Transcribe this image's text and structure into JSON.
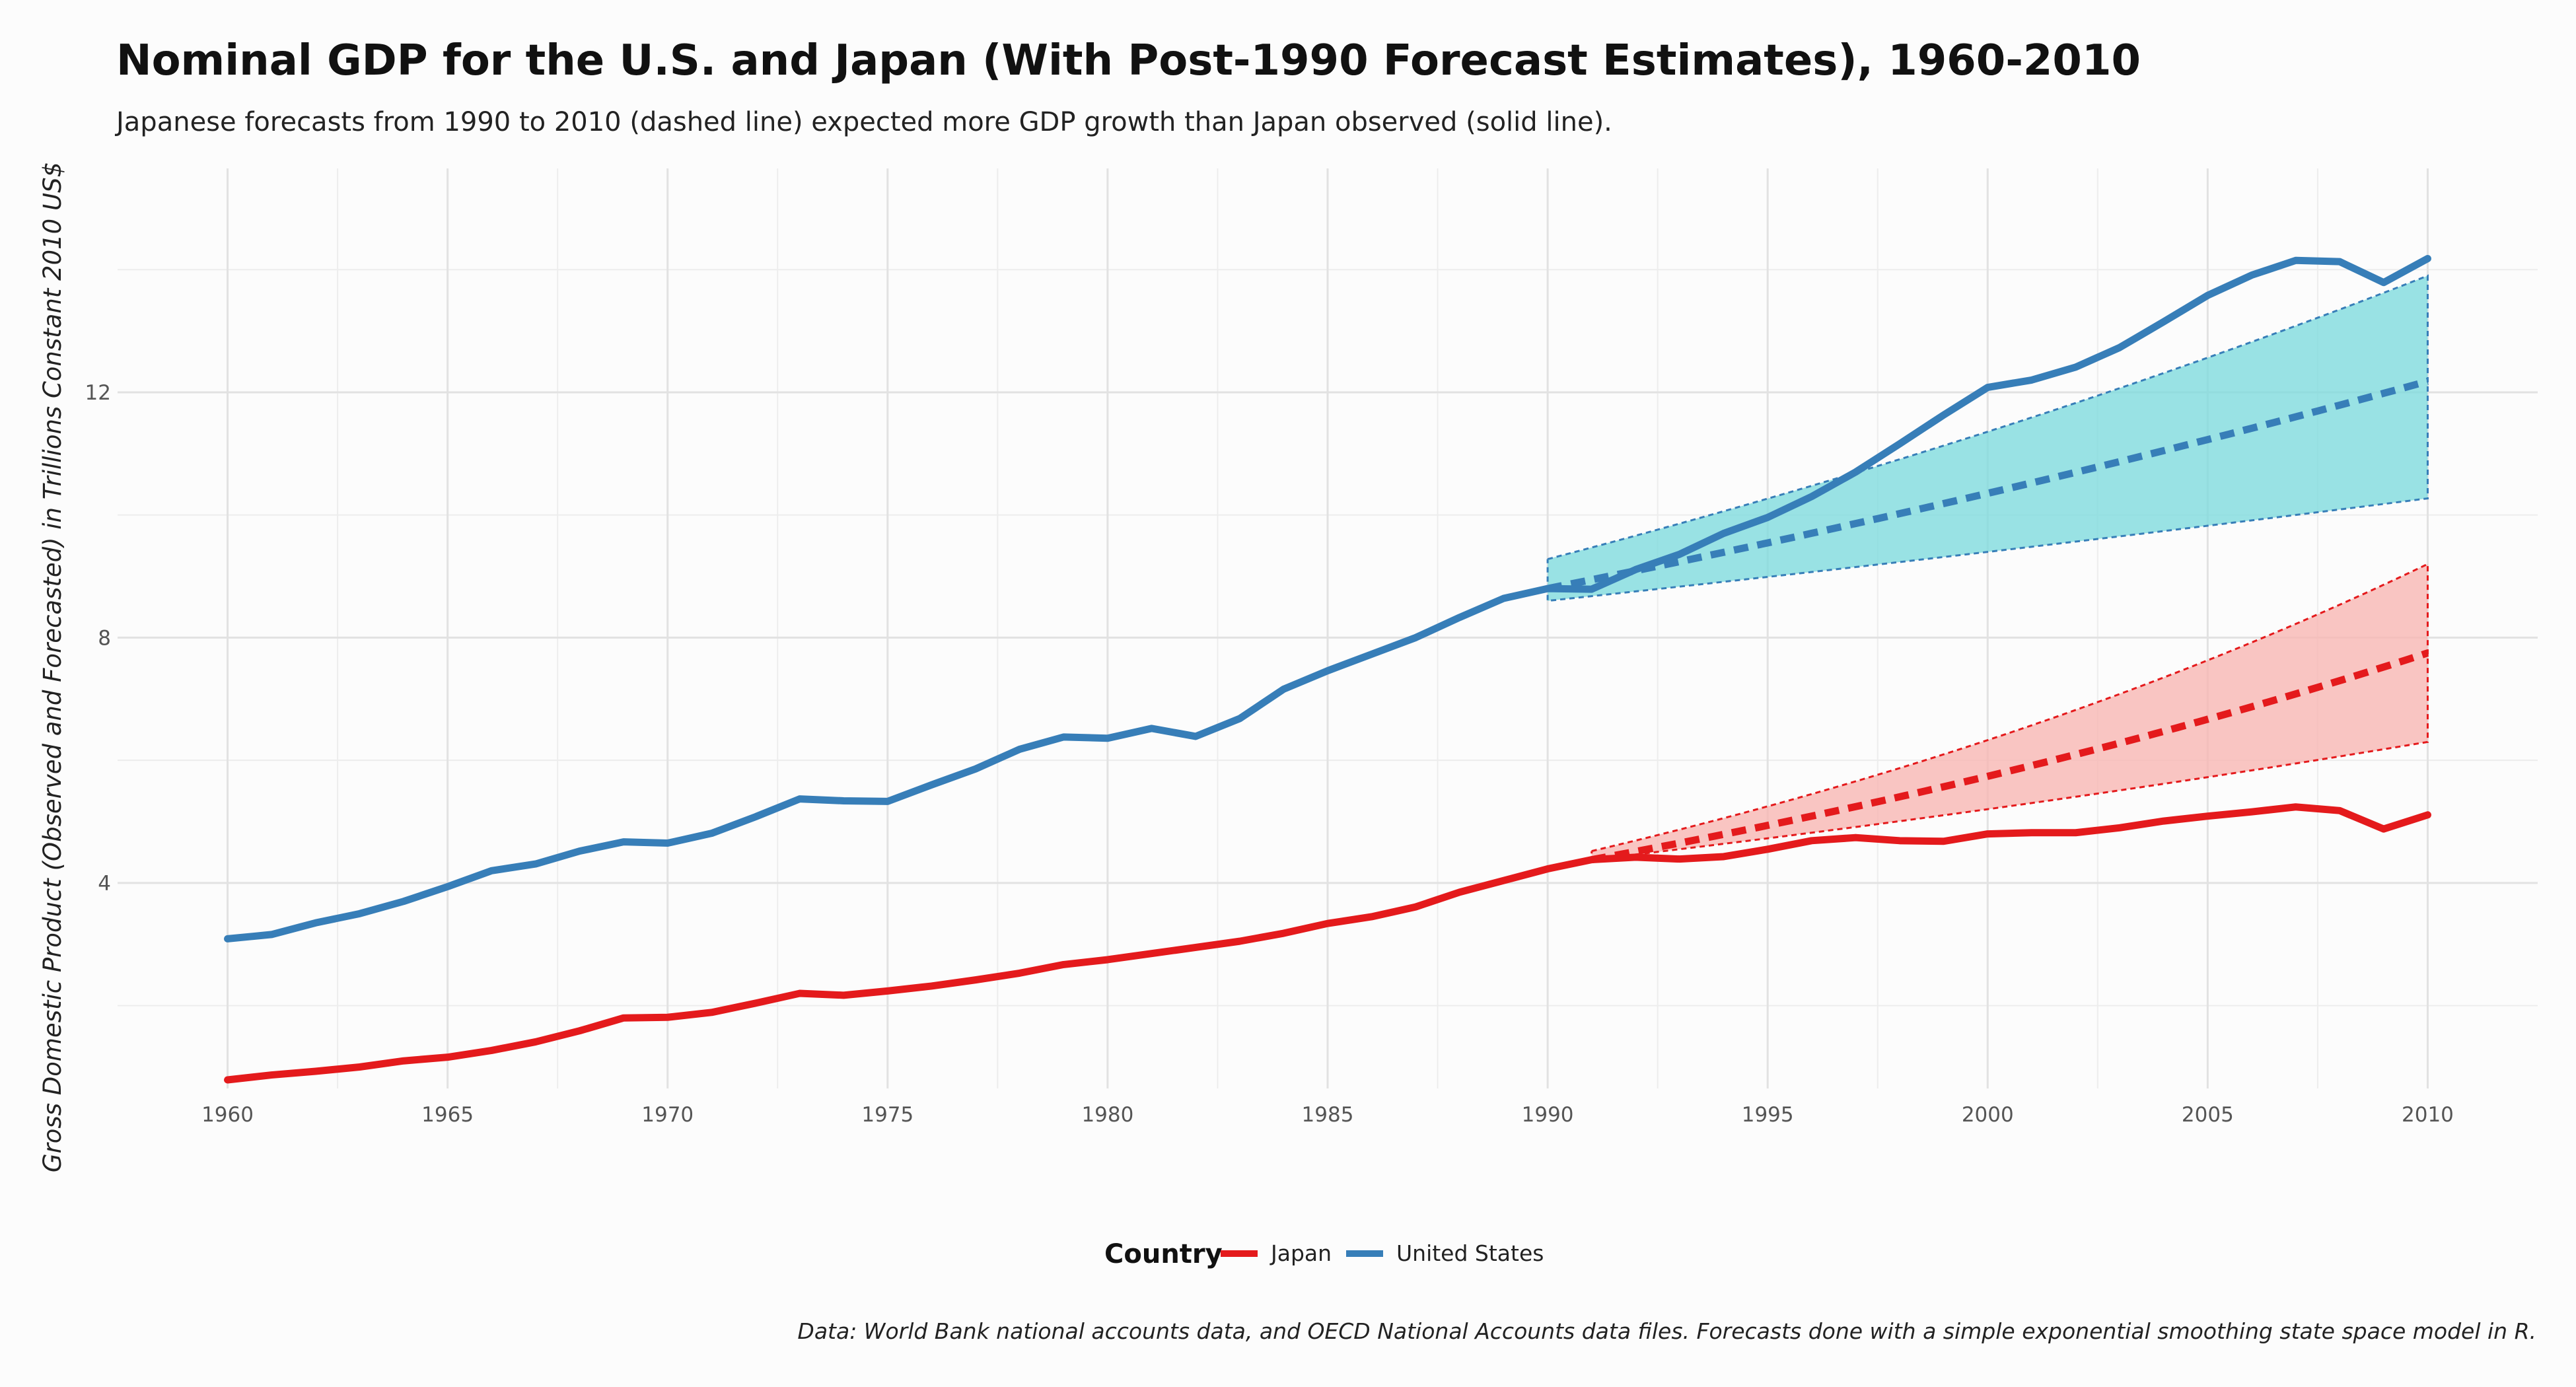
{
  "chart_data": {
    "type": "line",
    "title": "Nominal GDP for the U.S. and Japan (With Post-1990 Forecast Estimates), 1960-2010",
    "subtitle": "Japanese forecasts from 1990 to 2010 (dashed line) expected more GDP growth than Japan observed (solid line).",
    "xlabel": "",
    "ylabel": "Gross Domestic Product (Observed and Forecasted) in Trillions Constant 2010 US$",
    "caption": "Data: World Bank national accounts data, and OECD National Accounts data files. Forecasts done with a simple exponential smoothing state space model in R.",
    "xlim": [
      1957.5,
      2012.5
    ],
    "ylim": [
      0.65,
      15.65
    ],
    "x_ticks": [
      1960,
      1965,
      1970,
      1975,
      1980,
      1985,
      1990,
      1995,
      2000,
      2005,
      2010
    ],
    "x_tick_labels": [
      "1960",
      "1965",
      "1970",
      "1975",
      "1980",
      "1985",
      "1990",
      "1995",
      "2000",
      "2005",
      "2010"
    ],
    "y_ticks": [
      4,
      8,
      12
    ],
    "y_tick_labels": [
      "4",
      "8",
      "12"
    ],
    "y_minor_gridlines": [
      2,
      6,
      10,
      14
    ],
    "grid": true,
    "legend": {
      "position": "bottom",
      "title": "Country",
      "entries": [
        {
          "name": "Japan",
          "color": "#e41a1c"
        },
        {
          "name": "United States",
          "color": "#377eb8"
        }
      ]
    },
    "series": [
      {
        "name": "Japan",
        "color": "#e41a1c",
        "observed": {
          "x": [
            1960,
            1961,
            1962,
            1963,
            1964,
            1965,
            1966,
            1967,
            1968,
            1969,
            1970,
            1971,
            1972,
            1973,
            1974,
            1975,
            1976,
            1977,
            1978,
            1979,
            1980,
            1981,
            1982,
            1983,
            1984,
            1985,
            1986,
            1987,
            1988,
            1989,
            1990,
            1991,
            1992,
            1993,
            1994,
            1995,
            1996,
            1997,
            1998,
            1999,
            2000,
            2001,
            2002,
            2003,
            2004,
            2005,
            2006,
            2007,
            2008,
            2009,
            2010
          ],
          "y": [
            0.79,
            0.87,
            0.93,
            1.0,
            1.1,
            1.16,
            1.27,
            1.41,
            1.59,
            1.8,
            1.81,
            1.89,
            2.04,
            2.2,
            2.17,
            2.24,
            2.32,
            2.42,
            2.53,
            2.67,
            2.75,
            2.85,
            2.95,
            3.05,
            3.18,
            3.34,
            3.45,
            3.61,
            3.85,
            4.04,
            4.23,
            4.38,
            4.42,
            4.39,
            4.43,
            4.55,
            4.69,
            4.74,
            4.69,
            4.68,
            4.8,
            4.82,
            4.82,
            4.9,
            5.01,
            5.09,
            5.16,
            5.24,
            5.18,
            4.88,
            5.11
          ]
        },
        "forecast": {
          "x": [
            1991,
            2010
          ],
          "mean": [
            4.38,
            7.75
          ],
          "lo": [
            4.38,
            6.3
          ],
          "hi": [
            4.52,
            9.2
          ],
          "band_color": "#f8b7b3"
        }
      },
      {
        "name": "United States",
        "color": "#377eb8",
        "observed": {
          "x": [
            1960,
            1961,
            1962,
            1963,
            1964,
            1965,
            1966,
            1967,
            1968,
            1969,
            1970,
            1971,
            1972,
            1973,
            1974,
            1975,
            1976,
            1977,
            1978,
            1979,
            1980,
            1981,
            1982,
            1983,
            1984,
            1985,
            1986,
            1987,
            1988,
            1989,
            1990,
            1991,
            1992,
            1993,
            1994,
            1995,
            1996,
            1997,
            1998,
            1999,
            2000,
            2001,
            2002,
            2003,
            2004,
            2005,
            2006,
            2007,
            2008,
            2009,
            2010
          ],
          "y": [
            3.09,
            3.16,
            3.35,
            3.5,
            3.7,
            3.94,
            4.2,
            4.31,
            4.52,
            4.67,
            4.65,
            4.81,
            5.08,
            5.37,
            5.34,
            5.33,
            5.6,
            5.86,
            6.18,
            6.38,
            6.36,
            6.52,
            6.39,
            6.68,
            7.16,
            7.46,
            7.73,
            8.0,
            8.33,
            8.64,
            8.8,
            8.79,
            9.11,
            9.36,
            9.7,
            9.96,
            10.3,
            10.7,
            11.16,
            11.63,
            12.08,
            12.2,
            12.41,
            12.73,
            13.15,
            13.58,
            13.91,
            14.15,
            14.13,
            13.79,
            14.18
          ]
        },
        "forecast": {
          "x": [
            1990,
            2010
          ],
          "mean": [
            8.8,
            12.18
          ],
          "lo": [
            8.6,
            10.27
          ],
          "hi": [
            9.28,
            13.9
          ],
          "band_color": "#7fdbdd"
        }
      }
    ]
  }
}
